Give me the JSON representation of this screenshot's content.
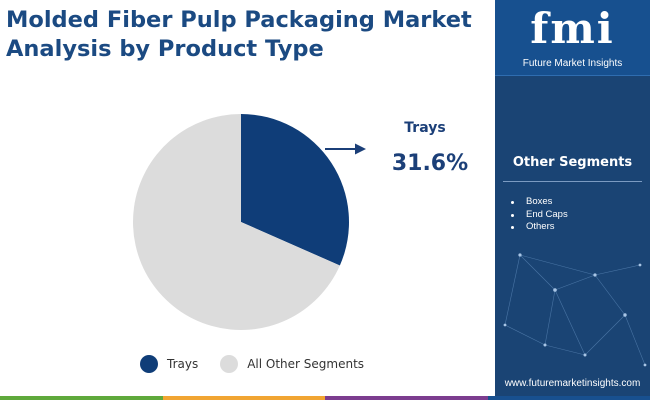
{
  "header": {
    "title_line1": "Molded Fiber Pulp Packaging Market",
    "title_line2": "Analysis by Product Type"
  },
  "chart_data": {
    "type": "pie",
    "categories": [
      "Trays",
      "All Other Segments"
    ],
    "values": [
      31.6,
      68.4
    ],
    "colors": [
      "#0f3d78",
      "#dcdcdc"
    ],
    "callout": {
      "label": "Trays",
      "value": "31.6%"
    },
    "legend": {
      "placement": "bottom",
      "items": [
        {
          "label": "Trays",
          "color": "#0f3d78"
        },
        {
          "label": "All Other Segments",
          "color": "#dcdcdc"
        }
      ]
    }
  },
  "sidebar": {
    "brand_logo": "fmi",
    "brand_name": "Future Market Insights",
    "segments_title": "Other Segments",
    "segments": [
      "Boxes",
      "End Caps",
      "Others"
    ],
    "website": "www.futuremarketinsights.com"
  },
  "footer": {
    "bar_colors": [
      "#5fa93b",
      "#f1a532",
      "#7c3d8f",
      "#18508f"
    ]
  }
}
